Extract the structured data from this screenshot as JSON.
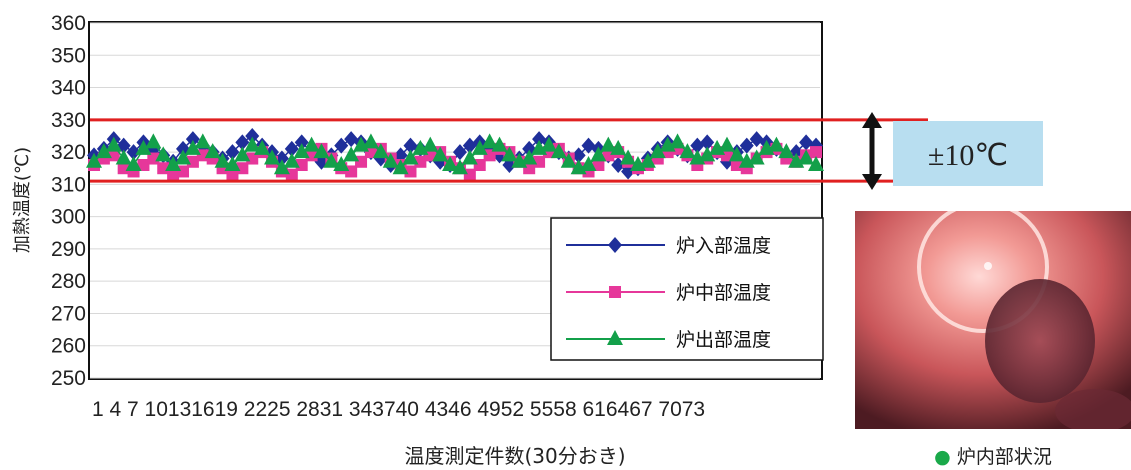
{
  "chart_data": {
    "type": "line",
    "ylabel": "加熱温度(℃)",
    "xlabel": "温度測定件数(30分おき)",
    "ylim": [
      250,
      360
    ],
    "yticks": [
      250,
      260,
      270,
      280,
      290,
      300,
      310,
      320,
      330,
      340,
      350,
      360
    ],
    "x_tick_labels": [
      "1",
      "4",
      "7",
      "10",
      "13",
      "16",
      "19",
      "22",
      "25",
      "28",
      "31",
      "34",
      "37",
      "40",
      "43",
      "46",
      "49",
      "52",
      "55",
      "58",
      "61",
      "64",
      "67",
      "70",
      "73"
    ],
    "x_tick_text": "1 4 7 10131619 2225 2831 343740 4346 4952 5558 616467 7073",
    "x_range": [
      1,
      74
    ],
    "grid": "horizontal",
    "legend_position": "bottom-right",
    "reference_lines": [
      330,
      311
    ],
    "band_label": "±10℃",
    "series": [
      {
        "name": "炉入部温度",
        "color": "#1f2f9a",
        "marker": "diamond",
        "values": [
          319,
          321,
          324,
          322,
          320,
          323,
          321,
          319,
          317,
          321,
          324,
          322,
          320,
          318,
          320,
          323,
          325,
          322,
          320,
          318,
          321,
          323,
          320,
          317,
          319,
          322,
          324,
          323,
          320,
          318,
          316,
          319,
          322,
          321,
          319,
          317,
          316,
          320,
          322,
          323,
          321,
          319,
          316,
          318,
          321,
          324,
          323,
          320,
          318,
          319,
          322,
          321,
          319,
          316,
          314,
          315,
          318,
          321,
          323,
          321,
          319,
          322,
          323,
          320,
          317,
          320,
          322,
          324,
          323,
          321,
          319,
          320,
          323,
          322
        ]
      },
      {
        "name": "炉中部温度",
        "color": "#e6379a",
        "marker": "square",
        "values": [
          316,
          318,
          319,
          315,
          314,
          316,
          318,
          315,
          313,
          314,
          317,
          319,
          318,
          315,
          313,
          315,
          318,
          320,
          317,
          314,
          313,
          316,
          319,
          321,
          318,
          315,
          314,
          317,
          320,
          321,
          318,
          316,
          314,
          317,
          319,
          320,
          317,
          315,
          313,
          316,
          319,
          321,
          320,
          317,
          315,
          317,
          320,
          321,
          318,
          315,
          314,
          316,
          319,
          320,
          317,
          315,
          316,
          318,
          320,
          321,
          319,
          316,
          318,
          320,
          319,
          316,
          315,
          318,
          320,
          321,
          318,
          317,
          319,
          320
        ]
      },
      {
        "name": "炉出部温度",
        "color": "#13a04a",
        "marker": "triangle",
        "values": [
          317,
          320,
          322,
          318,
          316,
          321,
          323,
          319,
          316,
          318,
          321,
          323,
          320,
          317,
          316,
          319,
          322,
          321,
          318,
          315,
          317,
          320,
          322,
          320,
          317,
          316,
          319,
          322,
          323,
          320,
          317,
          315,
          318,
          321,
          322,
          319,
          316,
          315,
          318,
          321,
          323,
          322,
          319,
          317,
          318,
          321,
          322,
          320,
          317,
          315,
          316,
          319,
          322,
          321,
          318,
          316,
          317,
          320,
          322,
          323,
          320,
          318,
          319,
          321,
          322,
          319,
          317,
          318,
          321,
          322,
          320,
          317,
          318,
          316
        ]
      }
    ]
  },
  "photo": {
    "caption_bullet": "●",
    "caption": "炉内部状況"
  },
  "colors": {
    "reference_line": "#e02020",
    "band_box": "#b8def0"
  }
}
